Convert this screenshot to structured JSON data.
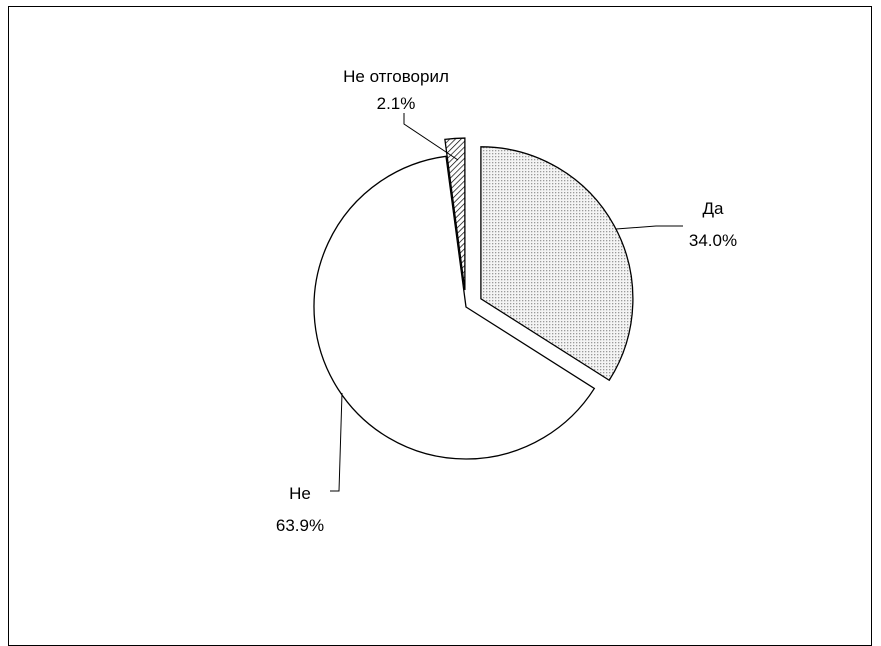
{
  "chart_data": {
    "type": "pie",
    "title": "",
    "legend": "none",
    "slices": [
      {
        "label": "Да",
        "value": 34.0,
        "value_label": "34.0%",
        "fill": "dots",
        "exploded": true
      },
      {
        "label": "Не",
        "value": 63.9,
        "value_label": "63.9%",
        "fill": "white",
        "exploded": false
      },
      {
        "label": "Не отговорил",
        "value": 2.1,
        "value_label": "2.1%",
        "fill": "hatch",
        "exploded": true
      }
    ]
  },
  "colors": {
    "outline": "#000000",
    "background": "#ffffff",
    "dot_fill": "#dcdcdc"
  }
}
